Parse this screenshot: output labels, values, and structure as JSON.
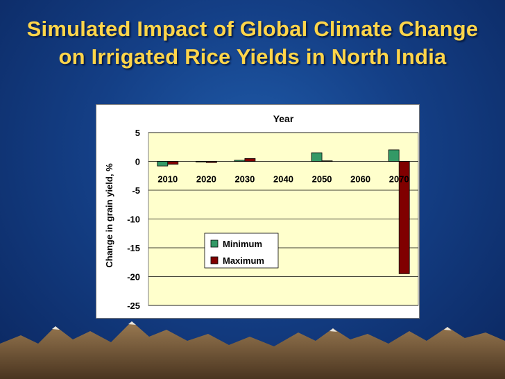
{
  "slide": {
    "title_line1": "Simulated Impact of Global Climate Change",
    "title_line2": "on Irrigated Rice Yields in North India"
  },
  "colors": {
    "title": "#ffd54a",
    "plot_bg": "#ffffcc",
    "minimum_series": "#339966",
    "maximum_series": "#800000"
  },
  "chart_data": {
    "type": "bar",
    "title": "Year",
    "xlabel": "",
    "ylabel": "Change in grain yield, %",
    "categories": [
      "2010",
      "2020",
      "2030",
      "2040",
      "2050",
      "2060",
      "2070"
    ],
    "series": [
      {
        "name": "Minimum",
        "values": [
          -0.8,
          -0.1,
          0.2,
          0,
          1.5,
          0,
          2.0
        ]
      },
      {
        "name": "Maximum",
        "values": [
          -0.5,
          -0.2,
          0.5,
          0,
          0.1,
          0,
          -19.5
        ]
      }
    ],
    "ylim": [
      -25,
      5
    ],
    "yticks": [
      5,
      0,
      -5,
      -10,
      -15,
      -20,
      -25
    ],
    "grid": true,
    "legend_position": "center"
  }
}
